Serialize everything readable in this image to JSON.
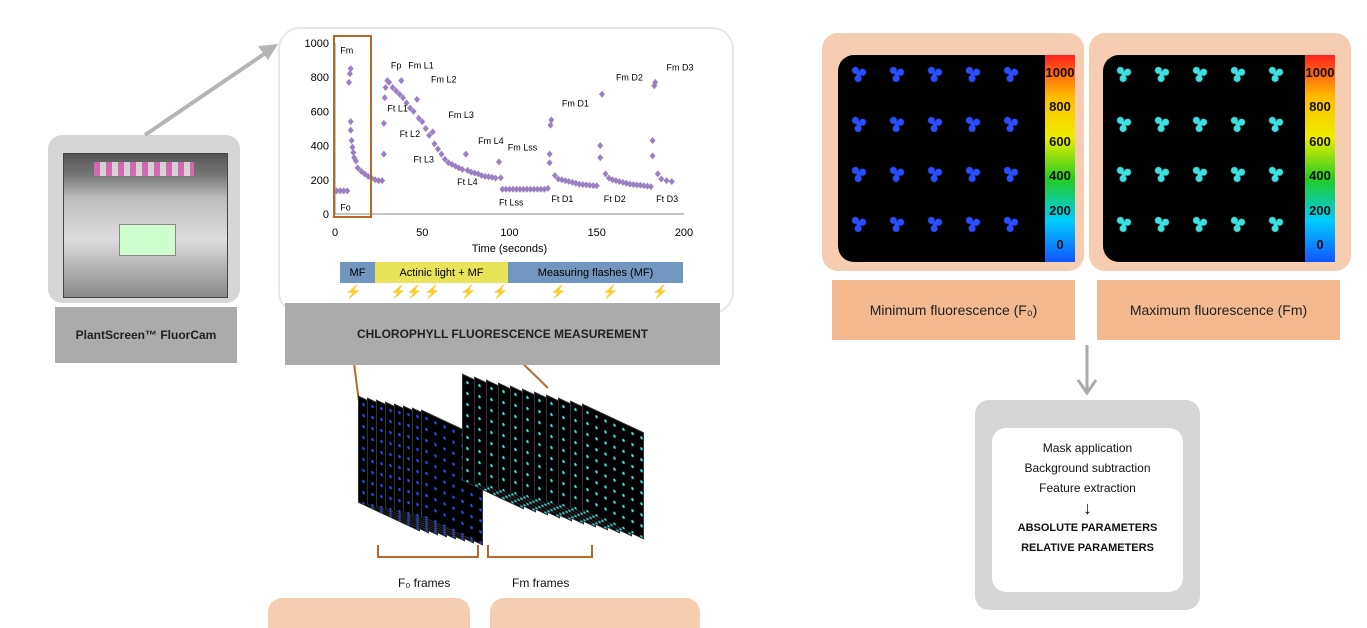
{
  "device": {
    "label": "PlantScreen™  FluorCam",
    "icon": "fluorcam-photo"
  },
  "measurement": {
    "label": "CHLOROPHYLL FLUORESCENCE MEASUREMENT"
  },
  "phases": [
    {
      "label": "MF",
      "color": "#7196c0"
    },
    {
      "label": "Actinic light + MF",
      "color": "#e8e45a"
    },
    {
      "label": "Measuring flashes (MF)",
      "color": "#7196c0"
    }
  ],
  "frames": {
    "f0": "F₀ frames",
    "fm": "Fm frames"
  },
  "images": {
    "min_label": "Minimum fluorescence (F₀)",
    "max_label": "Maximum fluorescence (Fm)",
    "scale_ticks": [
      "1000",
      "800",
      "600",
      "400",
      "200",
      "0"
    ],
    "min_color": "#2a4dff",
    "max_color": "#3de0e0"
  },
  "analysis": {
    "steps": [
      "Mask application",
      "Background subtraction",
      "Feature extraction"
    ],
    "outputs": [
      "ABSOLUTE PARAMETERS",
      "RELATIVE PARAMETERS"
    ]
  },
  "chart_data": {
    "type": "scatter",
    "xlabel": "Time (seconds)",
    "ylabel": "",
    "xlim": [
      0,
      200
    ],
    "ylim": [
      0,
      1000
    ],
    "xticks": [
      "0",
      "50",
      "100",
      "150",
      "200"
    ],
    "yticks": [
      "0",
      "200",
      "400",
      "600",
      "800",
      "1000"
    ],
    "color": "#9b7fc4",
    "points": [
      [
        1,
        135
      ],
      [
        3,
        135
      ],
      [
        5,
        135
      ],
      [
        7,
        135
      ],
      [
        8,
        770
      ],
      [
        8.5,
        820
      ],
      [
        9,
        850
      ],
      [
        9,
        540
      ],
      [
        9,
        490
      ],
      [
        9.5,
        430
      ],
      [
        10,
        390
      ],
      [
        10.5,
        360
      ],
      [
        11,
        330
      ],
      [
        12,
        310
      ],
      [
        13,
        270
      ],
      [
        15,
        250
      ],
      [
        17,
        235
      ],
      [
        19,
        220
      ],
      [
        21,
        210
      ],
      [
        23,
        200
      ],
      [
        25,
        195
      ],
      [
        27,
        195
      ],
      [
        28,
        350
      ],
      [
        28,
        530
      ],
      [
        28.5,
        680
      ],
      [
        29,
        740
      ],
      [
        30,
        780
      ],
      [
        31,
        770
      ],
      [
        33,
        740
      ],
      [
        35,
        720
      ],
      [
        37,
        700
      ],
      [
        38,
        780
      ],
      [
        39,
        680
      ],
      [
        41,
        650
      ],
      [
        43,
        620
      ],
      [
        45,
        600
      ],
      [
        47,
        670
      ],
      [
        48,
        560
      ],
      [
        50,
        540
      ],
      [
        52,
        500
      ],
      [
        54,
        460
      ],
      [
        56,
        480
      ],
      [
        57,
        410
      ],
      [
        59,
        380
      ],
      [
        61,
        350
      ],
      [
        63,
        320
      ],
      [
        65,
        300
      ],
      [
        67,
        290
      ],
      [
        69,
        280
      ],
      [
        71,
        270
      ],
      [
        73,
        260
      ],
      [
        75,
        350
      ],
      [
        76,
        255
      ],
      [
        78,
        245
      ],
      [
        80,
        240
      ],
      [
        82,
        235
      ],
      [
        84,
        225
      ],
      [
        86,
        220
      ],
      [
        88,
        218
      ],
      [
        90,
        215
      ],
      [
        92,
        210
      ],
      [
        94,
        305
      ],
      [
        95,
        212
      ],
      [
        96,
        145
      ],
      [
        98,
        145
      ],
      [
        100,
        145
      ],
      [
        102,
        145
      ],
      [
        104,
        145
      ],
      [
        106,
        145
      ],
      [
        108,
        145
      ],
      [
        110,
        145
      ],
      [
        112,
        145
      ],
      [
        114,
        145
      ],
      [
        116,
        145
      ],
      [
        118,
        145
      ],
      [
        120,
        145
      ],
      [
        122,
        150
      ],
      [
        123,
        350
      ],
      [
        123,
        300
      ],
      [
        123.5,
        520
      ],
      [
        124,
        550
      ],
      [
        126,
        225
      ],
      [
        128,
        205
      ],
      [
        130,
        200
      ],
      [
        132,
        195
      ],
      [
        134,
        190
      ],
      [
        136,
        185
      ],
      [
        138,
        180
      ],
      [
        140,
        175
      ],
      [
        142,
        172
      ],
      [
        144,
        170
      ],
      [
        146,
        168
      ],
      [
        148,
        166
      ],
      [
        150,
        165
      ],
      [
        152,
        400
      ],
      [
        152,
        330
      ],
      [
        153,
        700
      ],
      [
        155,
        235
      ],
      [
        157,
        210
      ],
      [
        159,
        200
      ],
      [
        161,
        195
      ],
      [
        163,
        190
      ],
      [
        165,
        185
      ],
      [
        167,
        180
      ],
      [
        169,
        175
      ],
      [
        171,
        172
      ],
      [
        173,
        170
      ],
      [
        175,
        168
      ],
      [
        177,
        165
      ],
      [
        179,
        163
      ],
      [
        181,
        160
      ],
      [
        182,
        340
      ],
      [
        182,
        430
      ],
      [
        183,
        750
      ],
      [
        183.5,
        770
      ],
      [
        185,
        235
      ],
      [
        187,
        205
      ],
      [
        190,
        195
      ],
      [
        193,
        190
      ]
    ],
    "annotations": [
      {
        "text": "Fm",
        "x": 3,
        "y": 940
      },
      {
        "text": "Fo",
        "x": 3,
        "y": 20
      },
      {
        "text": "Fp",
        "x": 32,
        "y": 850
      },
      {
        "text": "Fm L1",
        "x": 42,
        "y": 850
      },
      {
        "text": "Fm L2",
        "x": 55,
        "y": 770
      },
      {
        "text": "Ft L1",
        "x": 30,
        "y": 600
      },
      {
        "text": "Fm L3",
        "x": 65,
        "y": 560
      },
      {
        "text": "Ft L2",
        "x": 37,
        "y": 450
      },
      {
        "text": "Ft L3",
        "x": 45,
        "y": 300
      },
      {
        "text": "Fm L4",
        "x": 82,
        "y": 410
      },
      {
        "text": "Ft L4",
        "x": 70,
        "y": 170
      },
      {
        "text": "Fm Lss",
        "x": 99,
        "y": 370
      },
      {
        "text": "Ft Lss",
        "x": 94,
        "y": 50
      },
      {
        "text": "Fm D1",
        "x": 130,
        "y": 630
      },
      {
        "text": "Ft D1",
        "x": 124,
        "y": 70
      },
      {
        "text": "Fm D2",
        "x": 161,
        "y": 780
      },
      {
        "text": "Ft D2",
        "x": 154,
        "y": 70
      },
      {
        "text": "Fm D3",
        "x": 190,
        "y": 840
      },
      {
        "text": "Ft D3",
        "x": 184,
        "y": 70
      }
    ]
  }
}
